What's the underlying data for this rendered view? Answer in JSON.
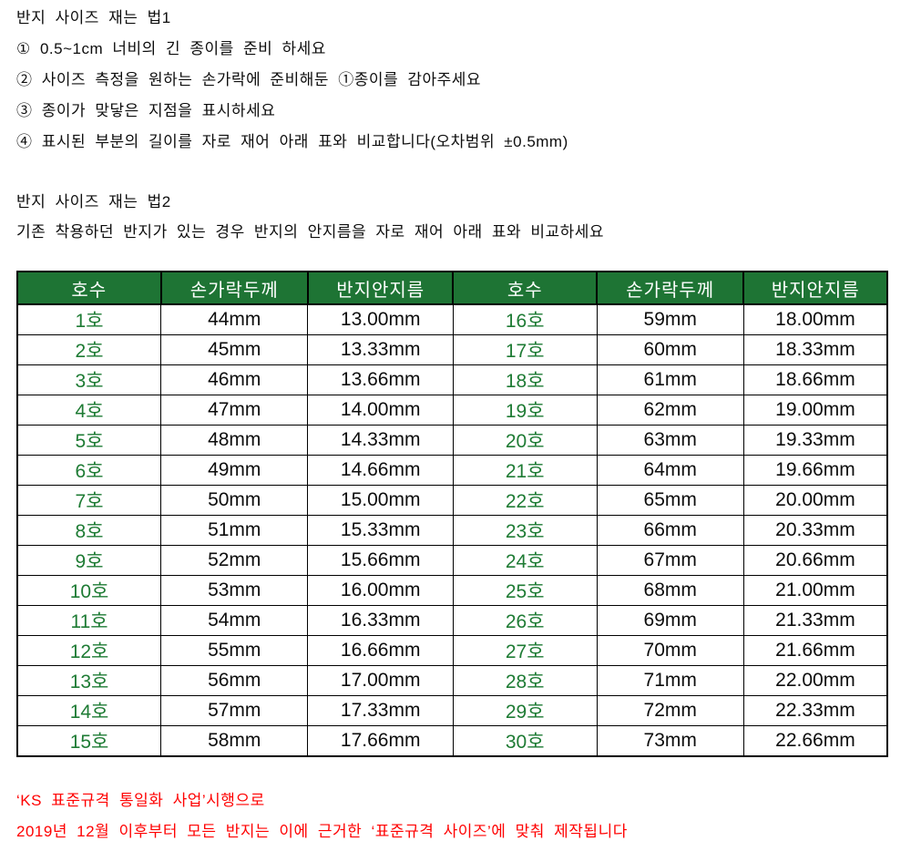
{
  "method1": {
    "title": "반지 사이즈 재는 법1",
    "steps": [
      "① 0.5~1cm 너비의 긴 종이를 준비 하세요",
      "② 사이즈 측정을 원하는 손가락에 준비해둔 ①종이를 감아주세요",
      "③ 종이가 맞닿은 지점을 표시하세요",
      "④ 표시된 부분의 길이를 자로 재어 아래 표와 비교합니다(오차범위 ±0.5mm)"
    ]
  },
  "method2": {
    "title": "반지 사이즈 재는 법2",
    "description": "기존 착용하던 반지가 있는 경우 반지의 안지름을 자로 재어 아래 표와 비교하세요"
  },
  "size_table": {
    "headers": [
      "호수",
      "손가락두께",
      "반지안지름",
      "호수",
      "손가락두께",
      "반지안지름"
    ],
    "rows": [
      [
        "1호",
        "44mm",
        "13.00mm",
        "16호",
        "59mm",
        "18.00mm"
      ],
      [
        "2호",
        "45mm",
        "13.33mm",
        "17호",
        "60mm",
        "18.33mm"
      ],
      [
        "3호",
        "46mm",
        "13.66mm",
        "18호",
        "61mm",
        "18.66mm"
      ],
      [
        "4호",
        "47mm",
        "14.00mm",
        "19호",
        "62mm",
        "19.00mm"
      ],
      [
        "5호",
        "48mm",
        "14.33mm",
        "20호",
        "63mm",
        "19.33mm"
      ],
      [
        "6호",
        "49mm",
        "14.66mm",
        "21호",
        "64mm",
        "19.66mm"
      ],
      [
        "7호",
        "50mm",
        "15.00mm",
        "22호",
        "65mm",
        "20.00mm"
      ],
      [
        "8호",
        "51mm",
        "15.33mm",
        "23호",
        "66mm",
        "20.33mm"
      ],
      [
        "9호",
        "52mm",
        "15.66mm",
        "24호",
        "67mm",
        "20.66mm"
      ],
      [
        "10호",
        "53mm",
        "16.00mm",
        "25호",
        "68mm",
        "21.00mm"
      ],
      [
        "11호",
        "54mm",
        "16.33mm",
        "26호",
        "69mm",
        "21.33mm"
      ],
      [
        "12호",
        "55mm",
        "16.66mm",
        "27호",
        "70mm",
        "21.66mm"
      ],
      [
        "13호",
        "56mm",
        "17.00mm",
        "28호",
        "71mm",
        "22.00mm"
      ],
      [
        "14호",
        "57mm",
        "17.33mm",
        "29호",
        "72mm",
        "22.33mm"
      ],
      [
        "15호",
        "58mm",
        "17.66mm",
        "30호",
        "73mm",
        "22.66mm"
      ]
    ]
  },
  "notice": {
    "line1": "‘KS 표준규격 통일화 사업’시행으로",
    "line2": "2019년 12월 이후부터 모든 반지는 이에 근거한 ‘표준규격 사이즈’에 맞춰 제작됩니다"
  },
  "colors": {
    "header_green": "#1e7434",
    "size_green": "#1e7b34",
    "notice_red": "#ff0000"
  }
}
